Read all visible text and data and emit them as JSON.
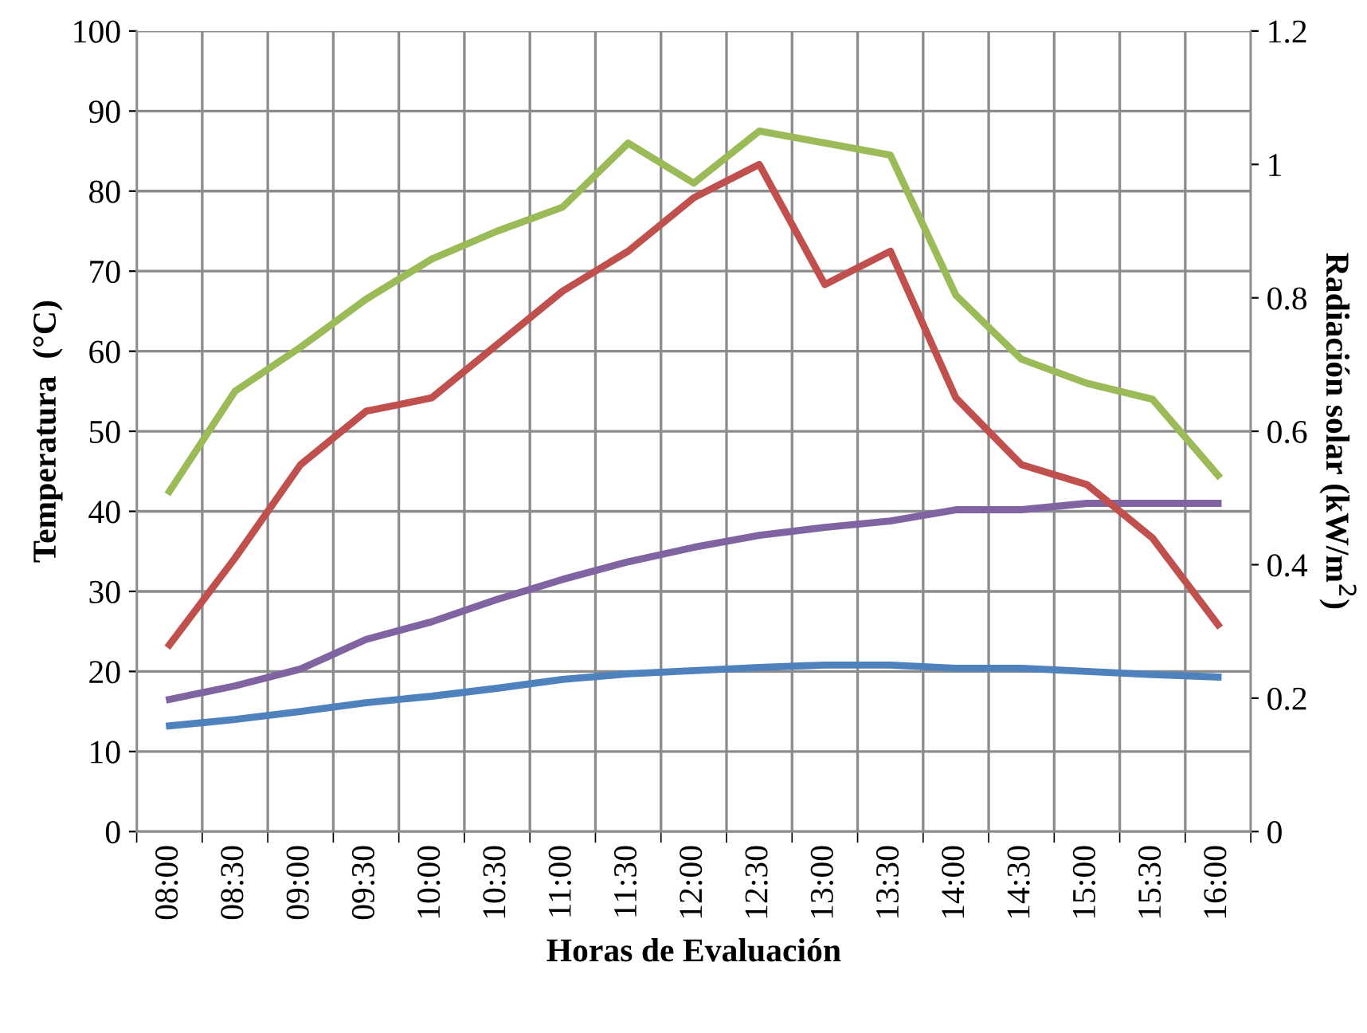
{
  "chart_data": {
    "type": "line",
    "xlabel": "Horas de Evaluación",
    "ylabel": "Temperatura  (°C)",
    "y2label": "Radiación solar (kW/m$^{2}$)",
    "categories": [
      "08:00",
      "08:30",
      "09:00",
      "09:30",
      "10:00",
      "10:30",
      "11:00",
      "11:30",
      "12:00",
      "12:30",
      "13:00",
      "13:30",
      "14:00",
      "14:30",
      "15:00",
      "15:30",
      "16:00"
    ],
    "series": [
      {
        "color": "#4f81bd",
        "values": [
          13.2,
          14,
          15,
          16.1,
          16.9,
          17.9,
          19,
          19.7,
          20.1,
          20.5,
          20.8,
          20.8,
          20.4,
          20.4,
          20,
          19.6,
          19.3
        ]
      },
      {
        "color": "#c0504d",
        "axis": "y2",
        "values": [
          0.28,
          0.41,
          0.55,
          0.63,
          0.65,
          0.73,
          0.81,
          0.87,
          0.95,
          1.0,
          0.82,
          0.87,
          0.65,
          0.55,
          0.52,
          0.44,
          0.31
        ]
      },
      {
        "color": "#9bbb59",
        "values": [
          42.5,
          55,
          60.5,
          66.5,
          71.5,
          75,
          78,
          86,
          81,
          87.5,
          86,
          84.5,
          67,
          59,
          56,
          54,
          44.5
        ]
      },
      {
        "color": "#8064a2",
        "values": [
          16.5,
          18.2,
          20.3,
          24,
          26.2,
          29,
          31.5,
          33.7,
          35.5,
          37,
          38,
          38.8,
          40.2,
          40.2,
          41,
          41,
          41
        ]
      }
    ],
    "ylim": [
      0,
      100
    ],
    "yticks": [
      0,
      10,
      20,
      30,
      40,
      50,
      60,
      70,
      80,
      90,
      100
    ],
    "y2lim": [
      0,
      1.2
    ],
    "y2ticks": [
      0,
      {
        "value": 0.2,
        "label": "0.2"
      },
      {
        "value": 0.4,
        "label": "0.4"
      },
      {
        "value": 0.6,
        "label": "0.6"
      },
      {
        "value": 0.8,
        "label": "0.8"
      },
      1,
      {
        "value": 1.2,
        "label": "1.2"
      }
    ],
    "grid": true,
    "marker": "none",
    "line_style": "solid"
  }
}
